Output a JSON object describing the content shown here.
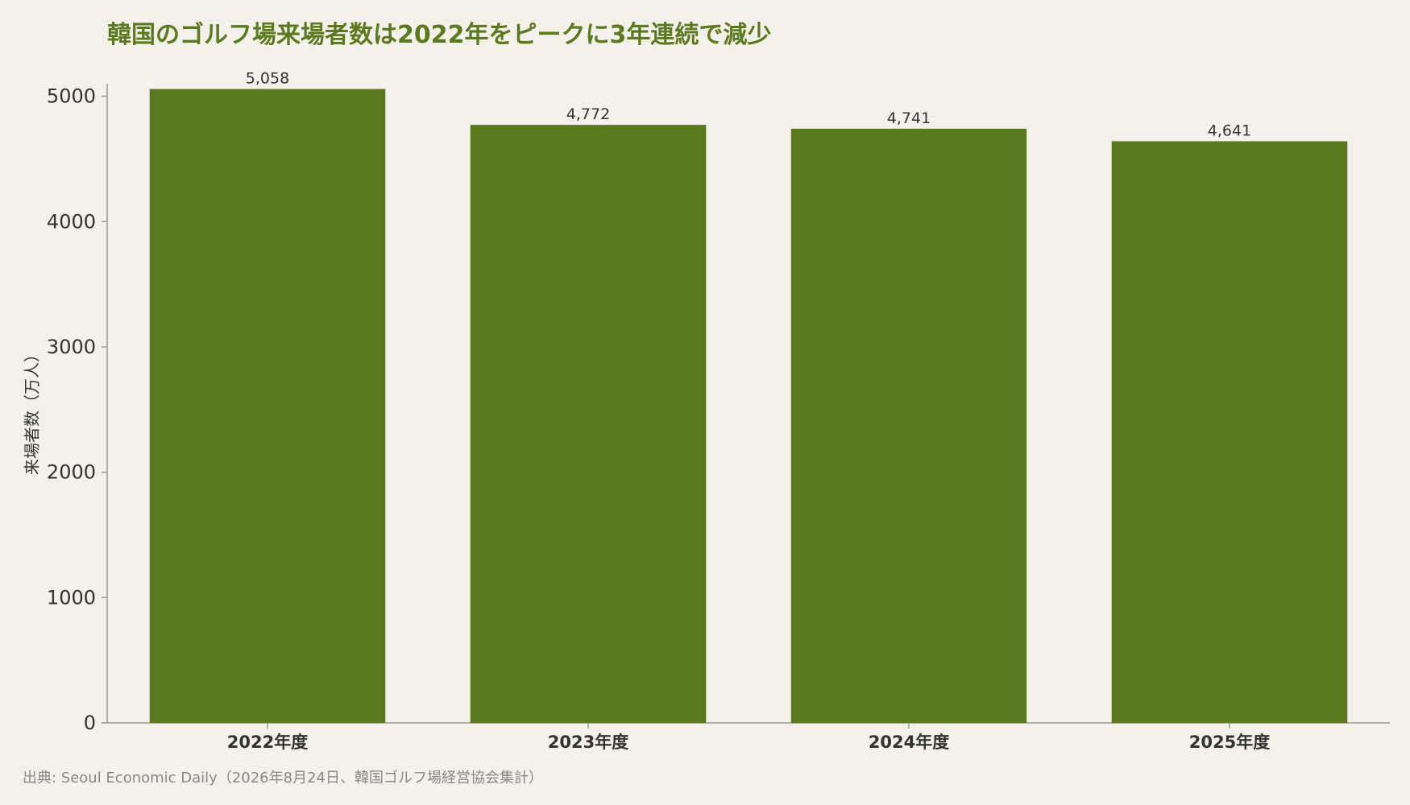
{
  "chart_data": {
    "type": "bar",
    "title": "韓国のゴルフ場来場者数は2022年をピークに3年連続で減少",
    "ylabel": "来場者数（万人）",
    "xlabel": "",
    "categories": [
      "2022年度",
      "2023年度",
      "2024年度",
      "2025年度"
    ],
    "values": [
      5058,
      4772,
      4741,
      4641
    ],
    "data_labels": [
      "5,058",
      "4,772",
      "4,741",
      "4,641"
    ],
    "ylim": [
      0,
      5100
    ],
    "yticks": [
      0,
      1000,
      2000,
      3000,
      4000,
      5000
    ],
    "ytick_labels": [
      "0",
      "1000",
      "2000",
      "3000",
      "4000",
      "5000"
    ],
    "grid": false,
    "legend": "none"
  },
  "colors": {
    "bar": "#5b7a1f",
    "title": "#5b7a1f",
    "axis": "#999999",
    "background": "#f3f1ea"
  },
  "source": "出典: Seoul Economic Daily（2026年8月24日、韓国ゴルフ場経営協会集計）"
}
